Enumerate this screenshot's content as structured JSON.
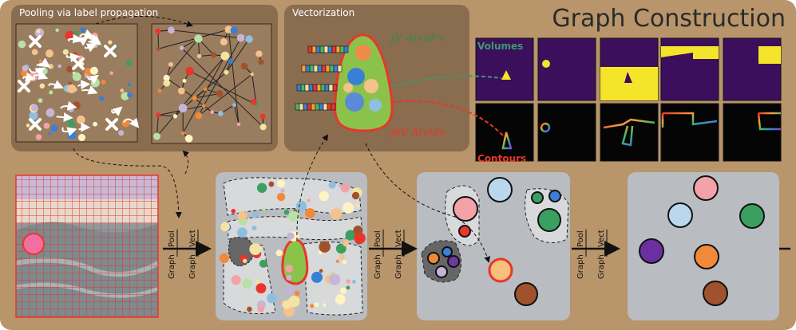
{
  "title": "Graph Construction",
  "panels": {
    "pooling_label": "Pooling via label propagation",
    "vectorization_label": "Vectorization"
  },
  "formulas": {
    "area_integral": "∫V A(v)d²v",
    "contour_integral": "∮∂V A(v)dv"
  },
  "legend": {
    "volumes": "Volumes",
    "contours": "Contours"
  },
  "step_labels": {
    "pool": "Pool",
    "vect": "Vect",
    "graph": "Graph"
  },
  "colors": {
    "background": "#b8956a",
    "panel_dark": "#8a6c4f",
    "volume_purple": "#3b0f5c",
    "volume_yellow": "#f5e52a",
    "vector_green": "#8bc34a",
    "highlight_red": "#e8362c",
    "graph_panel": "#b9bcc0",
    "volumes_text": "#3d9a6d",
    "contours_text": "#e8362c"
  }
}
